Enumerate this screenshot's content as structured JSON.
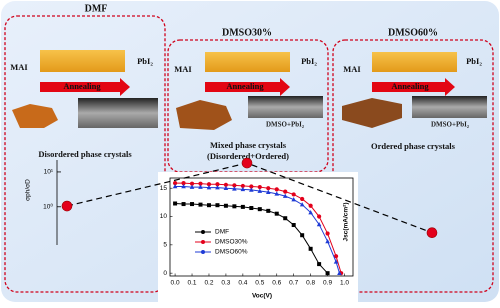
{
  "panels": [
    {
      "title": "DMF",
      "mai": "MAI",
      "pbi": "PbI₂",
      "annealing": "Annealing",
      "caption": "Disordered phase crystals"
    },
    {
      "title": "DMSO30%",
      "mai": "MAI",
      "pbi": "PbI₂",
      "annealing": "Annealing",
      "sem_label": "DMSO+PbI₂",
      "caption": "Mixed phase crystals",
      "caption2": "(Disordered+Ordered)"
    },
    {
      "title": "DMSO60%",
      "mai": "MAI",
      "pbi": "PbI₂",
      "annealing": "Annealing",
      "sem_label": "DMSO+PbI₂",
      "caption": "Ordered phase crystals"
    }
  ],
  "chart_data": [
    {
      "type": "scatter",
      "ylabel": "σph/σD",
      "categories": [
        null,
        null,
        null
      ],
      "values": [
        1.05,
        18,
        0.18
      ],
      "color": "#e3001b",
      "log_y": true,
      "ylim": [
        0.08,
        22
      ],
      "yticks": [
        {
          "value": 10,
          "label": "10¹"
        },
        {
          "value": 1,
          "label": "10⁰"
        }
      ]
    },
    {
      "type": "line",
      "xlabel": "Voc(V)",
      "ylabel": "Jsc(mA/cm²)",
      "xlim": [
        -0.03,
        1.05
      ],
      "ylim": [
        -0.5,
        16.8
      ],
      "xticks": [
        {
          "value": 0,
          "label": "0.0"
        },
        {
          "value": 0.1,
          "label": "0.1"
        },
        {
          "value": 0.2,
          "label": "0.2"
        },
        {
          "value": 0.3,
          "label": "0.3"
        },
        {
          "value": 0.4,
          "label": "0.4"
        },
        {
          "value": 0.5,
          "label": "0.5"
        },
        {
          "value": 0.6,
          "label": "0.6"
        },
        {
          "value": 0.7,
          "label": "0.7"
        },
        {
          "value": 0.8,
          "label": "0.8"
        },
        {
          "value": 0.9,
          "label": "0.9"
        },
        {
          "value": 1,
          "label": "1.0"
        }
      ],
      "yticks": [
        0,
        5,
        10,
        15
      ],
      "legend": "lower left",
      "series": [
        {
          "name": "DMF",
          "color": "#000000",
          "marker": "square",
          "x": [
            0,
            0.05,
            0.1,
            0.15,
            0.2,
            0.25,
            0.3,
            0.35,
            0.4,
            0.45,
            0.5,
            0.55,
            0.6,
            0.65,
            0.7,
            0.75,
            0.8,
            0.85,
            0.9
          ],
          "values": [
            12.3,
            12.2,
            12.2,
            12.1,
            12.0,
            12.0,
            11.9,
            11.8,
            11.7,
            11.5,
            11.3,
            11.0,
            10.5,
            9.7,
            8.5,
            6.7,
            4.3,
            1.6,
            0
          ]
        },
        {
          "name": "DMSO30%",
          "color": "#e3001b",
          "marker": "circle",
          "x": [
            0,
            0.05,
            0.1,
            0.15,
            0.2,
            0.25,
            0.3,
            0.35,
            0.4,
            0.45,
            0.5,
            0.55,
            0.6,
            0.65,
            0.7,
            0.75,
            0.8,
            0.85,
            0.9,
            0.95,
            0.98
          ],
          "values": [
            15.9,
            15.9,
            15.8,
            15.8,
            15.7,
            15.7,
            15.6,
            15.5,
            15.4,
            15.3,
            15.2,
            15.0,
            14.8,
            14.4,
            13.9,
            13.1,
            11.9,
            10.0,
            7.0,
            3.0,
            0
          ]
        },
        {
          "name": "DMSO60%",
          "color": "#1f3bd6",
          "marker": "triangle",
          "x": [
            0,
            0.05,
            0.1,
            0.15,
            0.2,
            0.25,
            0.3,
            0.35,
            0.4,
            0.45,
            0.5,
            0.55,
            0.6,
            0.65,
            0.7,
            0.75,
            0.8,
            0.85,
            0.9,
            0.95,
            0.97
          ],
          "values": [
            15.3,
            15.3,
            15.2,
            15.2,
            15.1,
            15.1,
            15.0,
            14.9,
            14.8,
            14.7,
            14.5,
            14.3,
            14.0,
            13.6,
            13.0,
            12.1,
            10.7,
            8.6,
            5.6,
            2.0,
            0
          ]
        }
      ]
    }
  ]
}
